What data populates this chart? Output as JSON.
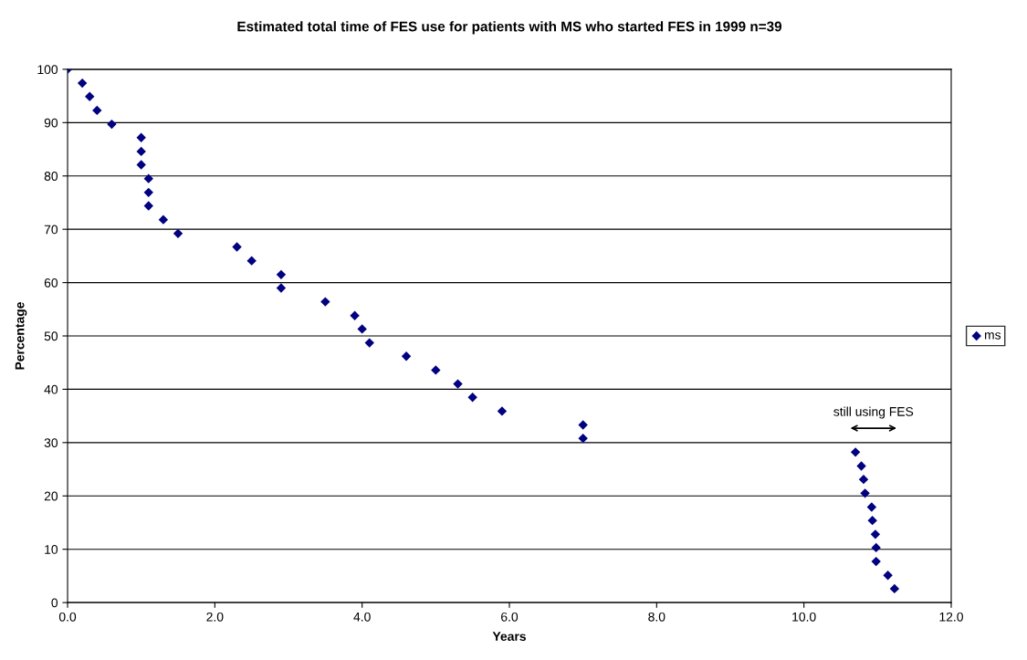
{
  "chart_data": {
    "type": "scatter",
    "title": "Estimated total time of FES use for patients with MS who started FES in 1999 n=39",
    "xlabel": "Years",
    "ylabel": "Percentage",
    "series": [
      {
        "name": "ms",
        "color": "#000080",
        "x": [
          0,
          0.2,
          0.3,
          0.4,
          0.6,
          1.0,
          1.0,
          1.0,
          1.1,
          1.1,
          1.1,
          1.3,
          1.5,
          2.3,
          2.5,
          2.9,
          2.9,
          3.5,
          3.9,
          4.0,
          4.1,
          4.6,
          5.0,
          5.3,
          5.5,
          5.9,
          7.0,
          7.0,
          10.7,
          10.78,
          10.81,
          10.83,
          10.92,
          10.93,
          10.97,
          10.98,
          10.98,
          11.14,
          11.23
        ],
        "values": [
          100,
          97.4,
          94.9,
          92.3,
          89.7,
          87.2,
          84.6,
          82.1,
          79.5,
          76.9,
          74.4,
          71.8,
          69.2,
          66.7,
          64.1,
          61.5,
          59.0,
          56.4,
          53.8,
          51.3,
          48.7,
          46.2,
          43.6,
          41.0,
          38.5,
          35.9,
          33.3,
          30.8,
          28.2,
          25.6,
          23.1,
          20.5,
          17.9,
          15.4,
          12.8,
          10.3,
          7.7,
          5.1,
          2.6
        ]
      }
    ],
    "annotations": [
      "still using FES"
    ],
    "xlim": [
      0,
      12
    ],
    "xticks": [
      {
        "value": 0,
        "label": "0.0"
      },
      {
        "value": 2,
        "label": "2.0"
      },
      {
        "value": 4,
        "label": "4.0"
      },
      {
        "value": 6,
        "label": "6.0"
      },
      {
        "value": 8,
        "label": "8.0"
      },
      {
        "value": 10,
        "label": "10.0"
      },
      {
        "value": 12,
        "label": "12.0"
      }
    ],
    "ylim": [
      0,
      100
    ],
    "yticks": [
      0,
      10,
      20,
      30,
      40,
      50,
      60,
      70,
      80,
      90,
      100
    ],
    "grid": "y",
    "legend": "right",
    "marker": "diamond"
  }
}
